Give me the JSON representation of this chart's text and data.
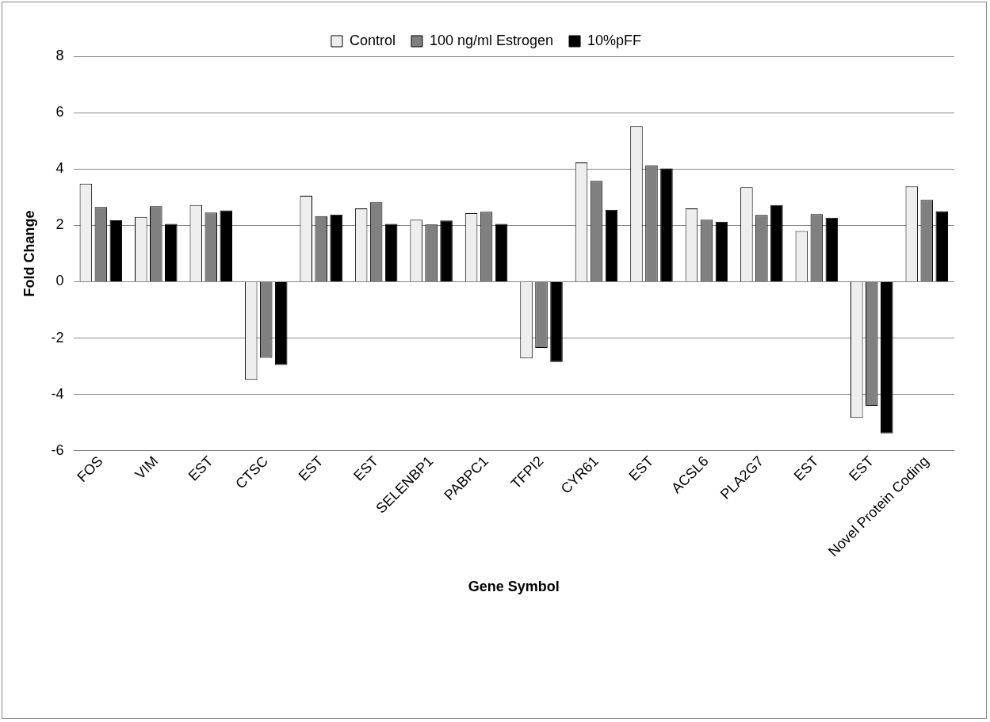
{
  "chart_data": {
    "type": "bar",
    "xlabel": "Gene Symbol",
    "ylabel": "Fold Change",
    "categories": [
      "FOS",
      "VIM",
      "EST",
      "CTSC",
      "EST",
      "EST",
      "SELENBP1",
      "PABPC1",
      "TFPI2",
      "CYR61",
      "EST",
      "ACSL6",
      "PLA2G7",
      "EST",
      "EST",
      "Novel Protein Coding"
    ],
    "series": [
      {
        "name": "Control",
        "color": "#eeeeee",
        "values": [
          3.48,
          2.3,
          2.72,
          -3.48,
          3.05,
          2.6,
          2.2,
          2.43,
          -2.72,
          4.23,
          5.52,
          2.6,
          3.35,
          1.8,
          -4.83,
          3.38
        ]
      },
      {
        "name": "100 ng/ml Estrogen",
        "color": "#808080",
        "values": [
          2.65,
          2.68,
          2.45,
          -2.7,
          2.33,
          2.82,
          2.03,
          2.48,
          -2.35,
          3.58,
          4.13,
          2.2,
          2.37,
          2.4,
          -4.4,
          2.9
        ]
      },
      {
        "name": "10%pFF",
        "color": "#000000",
        "values": [
          2.18,
          2.05,
          2.53,
          -2.95,
          2.38,
          2.05,
          2.17,
          2.05,
          -2.85,
          2.55,
          4.02,
          2.13,
          2.72,
          2.27,
          -5.38,
          2.5
        ]
      }
    ],
    "ylim": [
      -6,
      8
    ],
    "yticks": [
      -6,
      -4,
      -2,
      0,
      2,
      4,
      6,
      8
    ],
    "grid": "y",
    "legend": "top"
  }
}
